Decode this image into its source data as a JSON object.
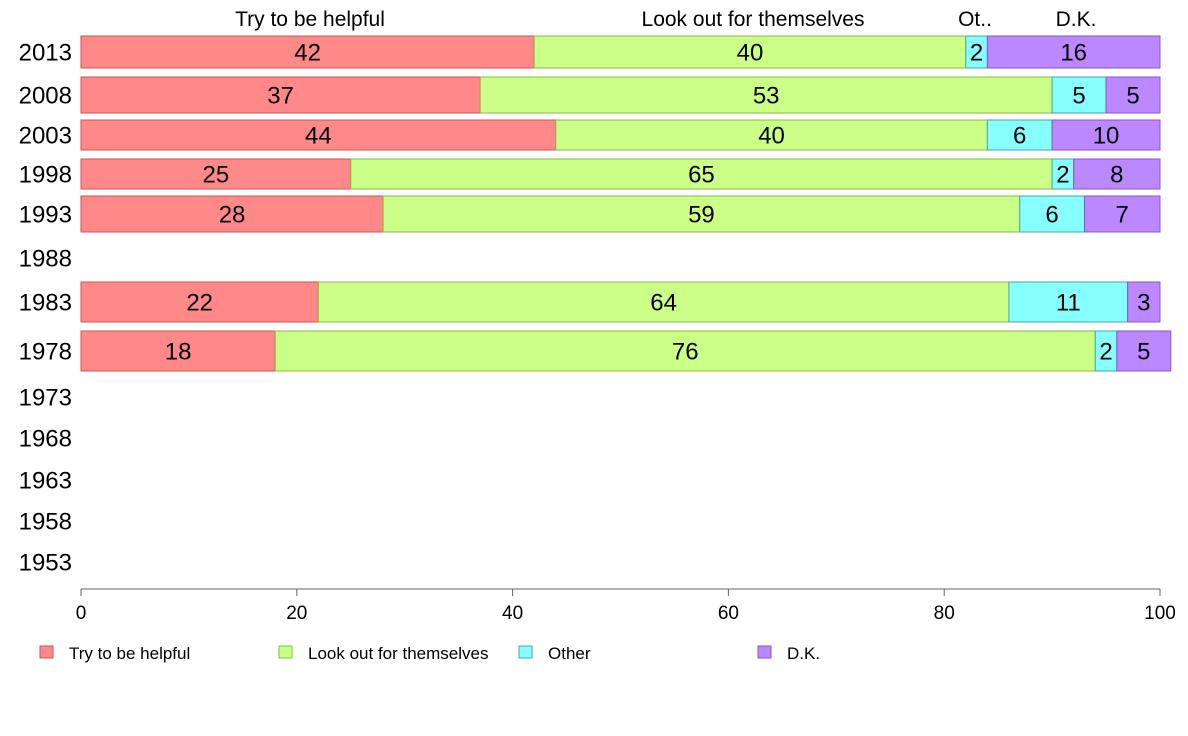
{
  "chart_data": {
    "type": "bar",
    "orientation": "horizontal",
    "stacked": true,
    "title": "",
    "xlabel": "",
    "ylabel": "",
    "xlim": [
      0,
      100
    ],
    "x_ticks": [
      0,
      20,
      40,
      60,
      80,
      100
    ],
    "grid": false,
    "legend_position": "bottom",
    "categories": [
      "2013",
      "2008",
      "2003",
      "1998",
      "1993",
      "1988",
      "1983",
      "1978",
      "1973",
      "1968",
      "1963",
      "1958",
      "1953"
    ],
    "column_headers": [
      "Try to be helpful",
      "Look out for themselves",
      "Ot..",
      "D.K."
    ],
    "series": [
      {
        "name": "Try to be helpful",
        "color": "#ff8888",
        "border": "#cc5555",
        "values": [
          42,
          37,
          44,
          25,
          28,
          null,
          22,
          18,
          null,
          null,
          null,
          null,
          null
        ]
      },
      {
        "name": "Look out for themselves",
        "color": "#ccff88",
        "border": "#88bb44",
        "values": [
          40,
          53,
          40,
          65,
          59,
          null,
          64,
          76,
          null,
          null,
          null,
          null,
          null
        ]
      },
      {
        "name": "Other",
        "color": "#88ffff",
        "border": "#44aaaa",
        "values": [
          2,
          5,
          6,
          2,
          6,
          null,
          11,
          2,
          null,
          null,
          null,
          null,
          null
        ]
      },
      {
        "name": "D.K.",
        "color": "#bb88ff",
        "border": "#8855cc",
        "values": [
          16,
          5,
          10,
          8,
          7,
          null,
          3,
          5,
          null,
          null,
          null,
          null,
          null
        ]
      }
    ]
  }
}
